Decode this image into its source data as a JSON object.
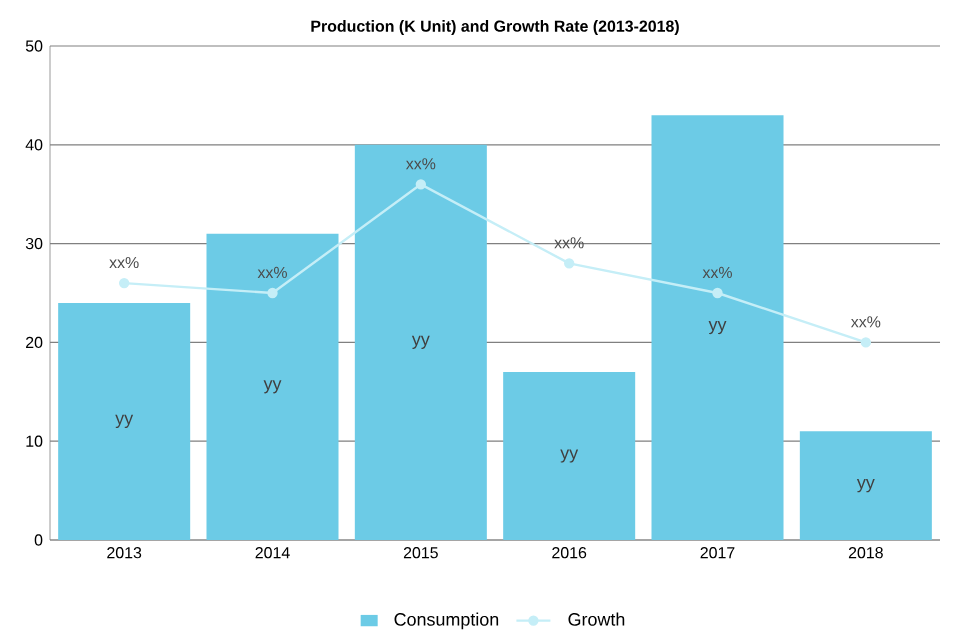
{
  "chart_data": {
    "type": "bar",
    "title": "Production (K Unit) and Growth Rate (2013-2018)",
    "categories": [
      "2013",
      "2014",
      "2015",
      "2016",
      "2017",
      "2018"
    ],
    "series": [
      {
        "name": "Consumption",
        "color": "#6ccbe6",
        "values": [
          24,
          31,
          40,
          17,
          43,
          11
        ],
        "value_labels": [
          "yy",
          "yy",
          "yy",
          "yy",
          "yy",
          "yy"
        ]
      },
      {
        "name": "Growth",
        "type": "line",
        "color": "#c5eef7",
        "marker": "circle",
        "values": [
          26,
          25,
          36,
          28,
          25,
          20
        ],
        "value_labels": [
          "xx%",
          "xx%",
          "xx%",
          "xx%",
          "xx%",
          "xx%"
        ]
      }
    ],
    "ylim": [
      0,
      50
    ],
    "yticks": [
      0,
      10,
      20,
      30,
      40,
      50
    ],
    "grid": "y",
    "legend": "bottom"
  }
}
